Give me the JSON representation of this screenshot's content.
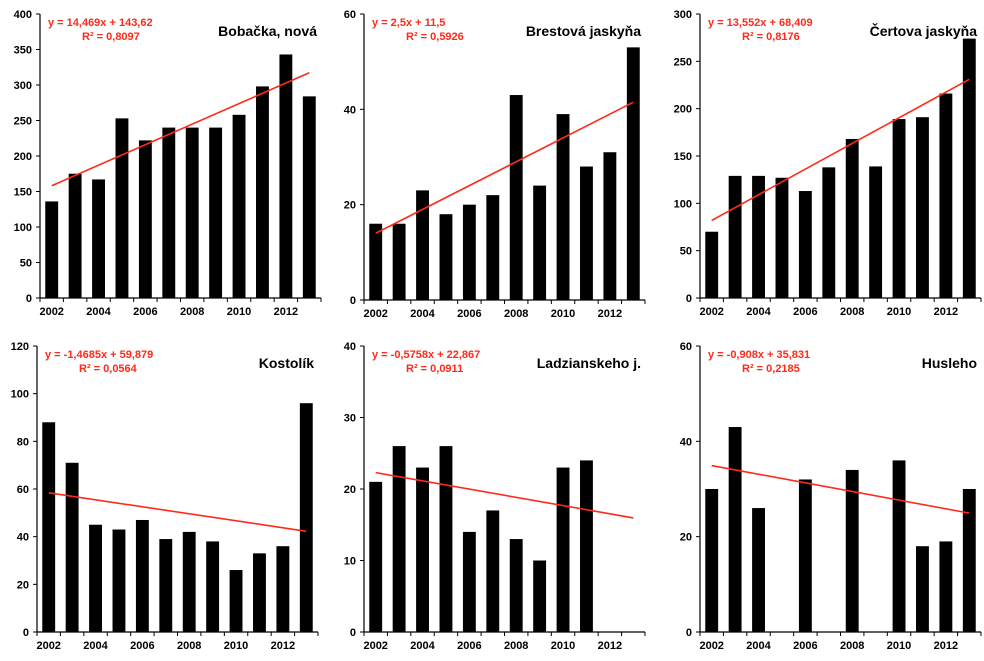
{
  "chart_data": [
    {
      "type": "bar",
      "title": "Bobačka, nová",
      "equation": "y = 14,469x + 143,62",
      "r2": "R² = 0,8097",
      "years": [
        2002,
        2003,
        2004,
        2005,
        2006,
        2007,
        2008,
        2009,
        2010,
        2011,
        2012,
        2013
      ],
      "values": [
        136,
        175,
        167,
        253,
        222,
        240,
        240,
        240,
        258,
        298,
        343,
        284
      ],
      "trend": {
        "slope": 14.469,
        "intercept": 143.62
      },
      "ylim": [
        0,
        400
      ],
      "yticks": [
        "0",
        "50",
        "100",
        "150",
        "200",
        "250",
        "300",
        "350",
        "400"
      ],
      "xticks": [
        "2002",
        "2004",
        "2006",
        "2008",
        "2010",
        "2012"
      ]
    },
    {
      "type": "bar",
      "title": "Brestová jaskyňa",
      "equation": "y = 2,5x + 11,5",
      "r2": "R² = 0,5926",
      "years": [
        2002,
        2003,
        2004,
        2005,
        2006,
        2007,
        2008,
        2009,
        2010,
        2011,
        2012,
        2013
      ],
      "values": [
        16,
        16,
        23,
        18,
        20,
        22,
        43,
        24,
        39,
        28,
        31,
        53
      ],
      "trend": {
        "slope": 2.5,
        "intercept": 11.5
      },
      "ylim": [
        0,
        60
      ],
      "yticks": [
        "0",
        "20",
        "40",
        "60"
      ],
      "xticks": [
        "2002",
        "2004",
        "2006",
        "2008",
        "2010",
        "2012"
      ]
    },
    {
      "type": "bar",
      "title": "Čertova jaskyňa",
      "equation": "y = 13,552x + 68,409",
      "r2": "R² = 0,8176",
      "years": [
        2002,
        2003,
        2004,
        2005,
        2006,
        2007,
        2008,
        2009,
        2010,
        2011,
        2012,
        2013
      ],
      "values": [
        70,
        129,
        129,
        127,
        113,
        138,
        168,
        139,
        189,
        191,
        216,
        274
      ],
      "trend": {
        "slope": 13.552,
        "intercept": 68.409
      },
      "ylim": [
        0,
        300
      ],
      "yticks": [
        "0",
        "50",
        "100",
        "150",
        "200",
        "250",
        "300"
      ],
      "xticks": [
        "2002",
        "2004",
        "2006",
        "2008",
        "2010",
        "2012"
      ]
    },
    {
      "type": "bar",
      "title": "Kostolík",
      "equation": "y = -1,4685x + 59,879",
      "r2": "R² = 0,0564",
      "years": [
        2002,
        2003,
        2004,
        2005,
        2006,
        2007,
        2008,
        2009,
        2010,
        2011,
        2012,
        2013
      ],
      "values": [
        88,
        71,
        45,
        43,
        47,
        39,
        42,
        38,
        26,
        33,
        36,
        96
      ],
      "trend": {
        "slope": -1.4685,
        "intercept": 59.879
      },
      "ylim": [
        0,
        120
      ],
      "yticks": [
        "0",
        "20",
        "40",
        "60",
        "80",
        "100",
        "120"
      ],
      "xticks": [
        "2002",
        "2004",
        "2006",
        "2008",
        "2010",
        "2012"
      ]
    },
    {
      "type": "bar",
      "title": "Ladzianskeho j.",
      "equation": "y = -0,5758x + 22,867",
      "r2": "R² = 0,0911",
      "years": [
        2002,
        2003,
        2004,
        2005,
        2006,
        2007,
        2008,
        2009,
        2010,
        2011,
        2012,
        2013
      ],
      "values": [
        21,
        26,
        23,
        26,
        14,
        17,
        13,
        10,
        23,
        24,
        null,
        null
      ],
      "trend": {
        "slope": -0.5758,
        "intercept": 22.867
      },
      "ylim": [
        0,
        40
      ],
      "yticks": [
        "0",
        "10",
        "20",
        "30",
        "40"
      ],
      "xticks": [
        "2002",
        "2004",
        "2006",
        "2008",
        "2010",
        "2012"
      ]
    },
    {
      "type": "bar",
      "title": "Husleho",
      "equation": "y = -0,908x + 35,831",
      "r2": "R² = 0,2185",
      "years": [
        2002,
        2003,
        2004,
        2005,
        2006,
        2007,
        2008,
        2009,
        2010,
        2011,
        2012,
        2013
      ],
      "values": [
        30,
        43,
        26,
        null,
        32,
        null,
        34,
        null,
        36,
        18,
        19,
        30
      ],
      "trend": {
        "slope": -0.908,
        "intercept": 35.831
      },
      "ylim": [
        0,
        60
      ],
      "yticks": [
        "0",
        "20",
        "40",
        "60"
      ],
      "xticks": [
        "2002",
        "2004",
        "2006",
        "2008",
        "2010",
        "2012"
      ]
    }
  ],
  "colors": {
    "bar": "#000000",
    "trend": "#ff2a1a",
    "equation_text": "#ff2a1a",
    "axis": "#000000"
  }
}
